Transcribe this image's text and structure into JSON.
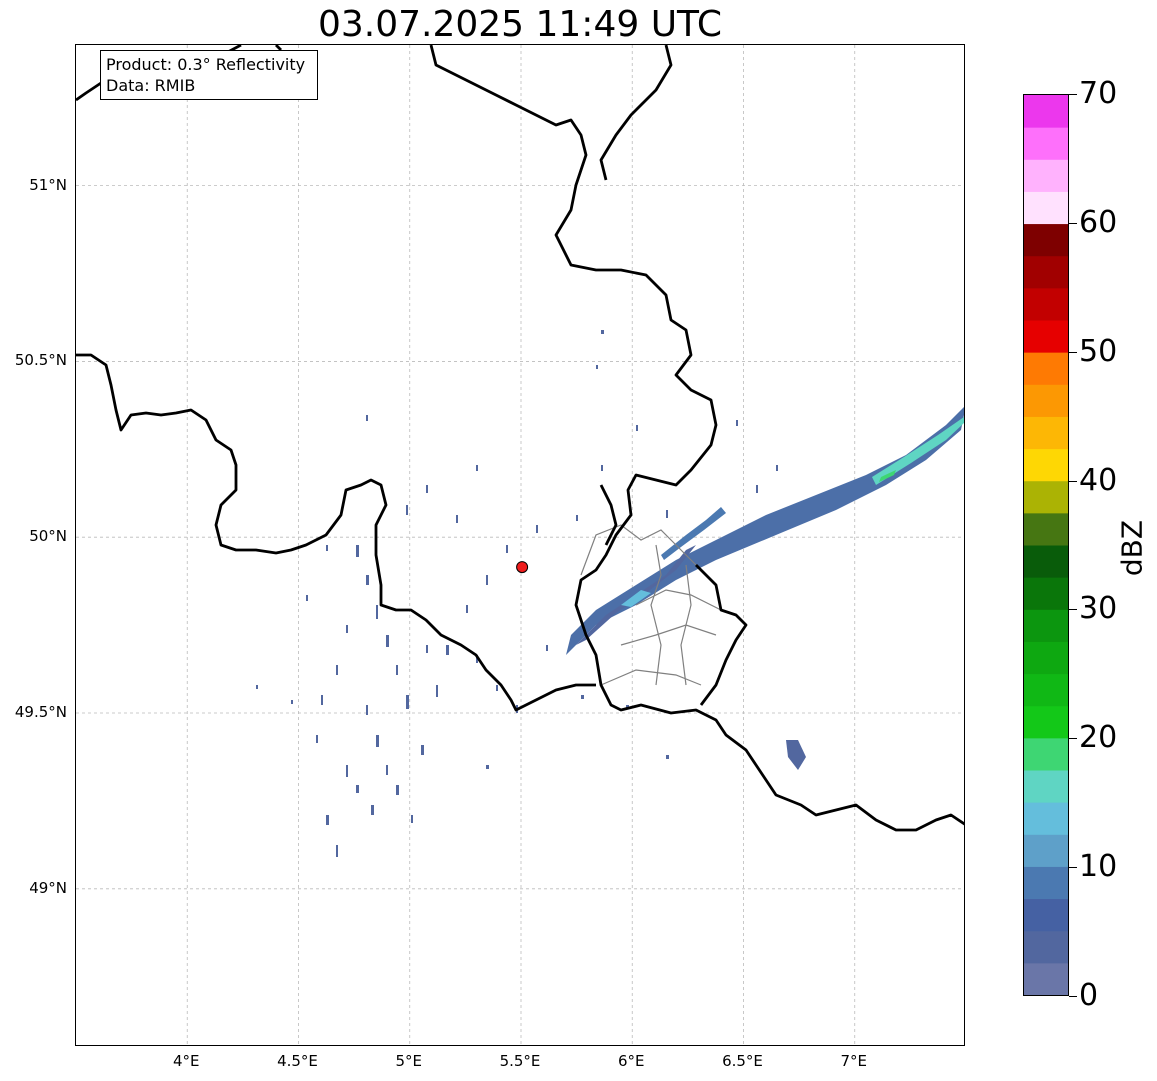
{
  "title": "03.07.2025 11:49 UTC",
  "info": {
    "product": "Product: 0.3° Reflectivity",
    "data_source": "Data: RMIB"
  },
  "map": {
    "lon_range": [
      3.5,
      7.5
    ],
    "lat_range": [
      48.55,
      51.4
    ],
    "lat_ticks": [
      {
        "value": 49.0,
        "label": "49°N"
      },
      {
        "value": 49.5,
        "label": "49.5°N"
      },
      {
        "value": 50.0,
        "label": "50°N"
      },
      {
        "value": 50.5,
        "label": "50.5°N"
      },
      {
        "value": 51.0,
        "label": "51°N"
      }
    ],
    "lon_ticks": [
      {
        "value": 4.0,
        "label": "4°E"
      },
      {
        "value": 4.5,
        "label": "4.5°E"
      },
      {
        "value": 5.0,
        "label": "5°E"
      },
      {
        "value": 5.5,
        "label": "5.5°E"
      },
      {
        "value": 6.0,
        "label": "6°E"
      },
      {
        "value": 6.5,
        "label": "6.5°E"
      },
      {
        "value": 7.0,
        "label": "7°E"
      }
    ],
    "gridlines": true,
    "radar_site": {
      "lon": 5.505,
      "lat": 49.915,
      "color": "#ee1c1c"
    },
    "country_border_color": "#000000",
    "district_border_color": "#808080"
  },
  "colorbar": {
    "label": "dBZ",
    "min": 0,
    "max": 70,
    "ticks": [
      {
        "value": 0,
        "label": "0"
      },
      {
        "value": 10,
        "label": "10"
      },
      {
        "value": 20,
        "label": "20"
      },
      {
        "value": 30,
        "label": "30"
      },
      {
        "value": 40,
        "label": "40"
      },
      {
        "value": 50,
        "label": "50"
      },
      {
        "value": 60,
        "label": "60"
      },
      {
        "value": 70,
        "label": "70"
      }
    ],
    "colors": [
      "#6a76a8",
      "#52679f",
      "#4561a3",
      "#4b79b1",
      "#5ea0c9",
      "#64bedc",
      "#5fd5c3",
      "#3ed673",
      "#13c818",
      "#10b815",
      "#0ea811",
      "#0c960f",
      "#0a760a",
      "#095c0a",
      "#467612",
      "#abb304",
      "#fed704",
      "#fdb705",
      "#fc9803",
      "#fe7a03",
      "#e60000",
      "#c20000",
      "#a10000",
      "#7e0000",
      "#ffe1fe",
      "#ffb2fd",
      "#fe70fb",
      "#ec37ed"
    ]
  }
}
